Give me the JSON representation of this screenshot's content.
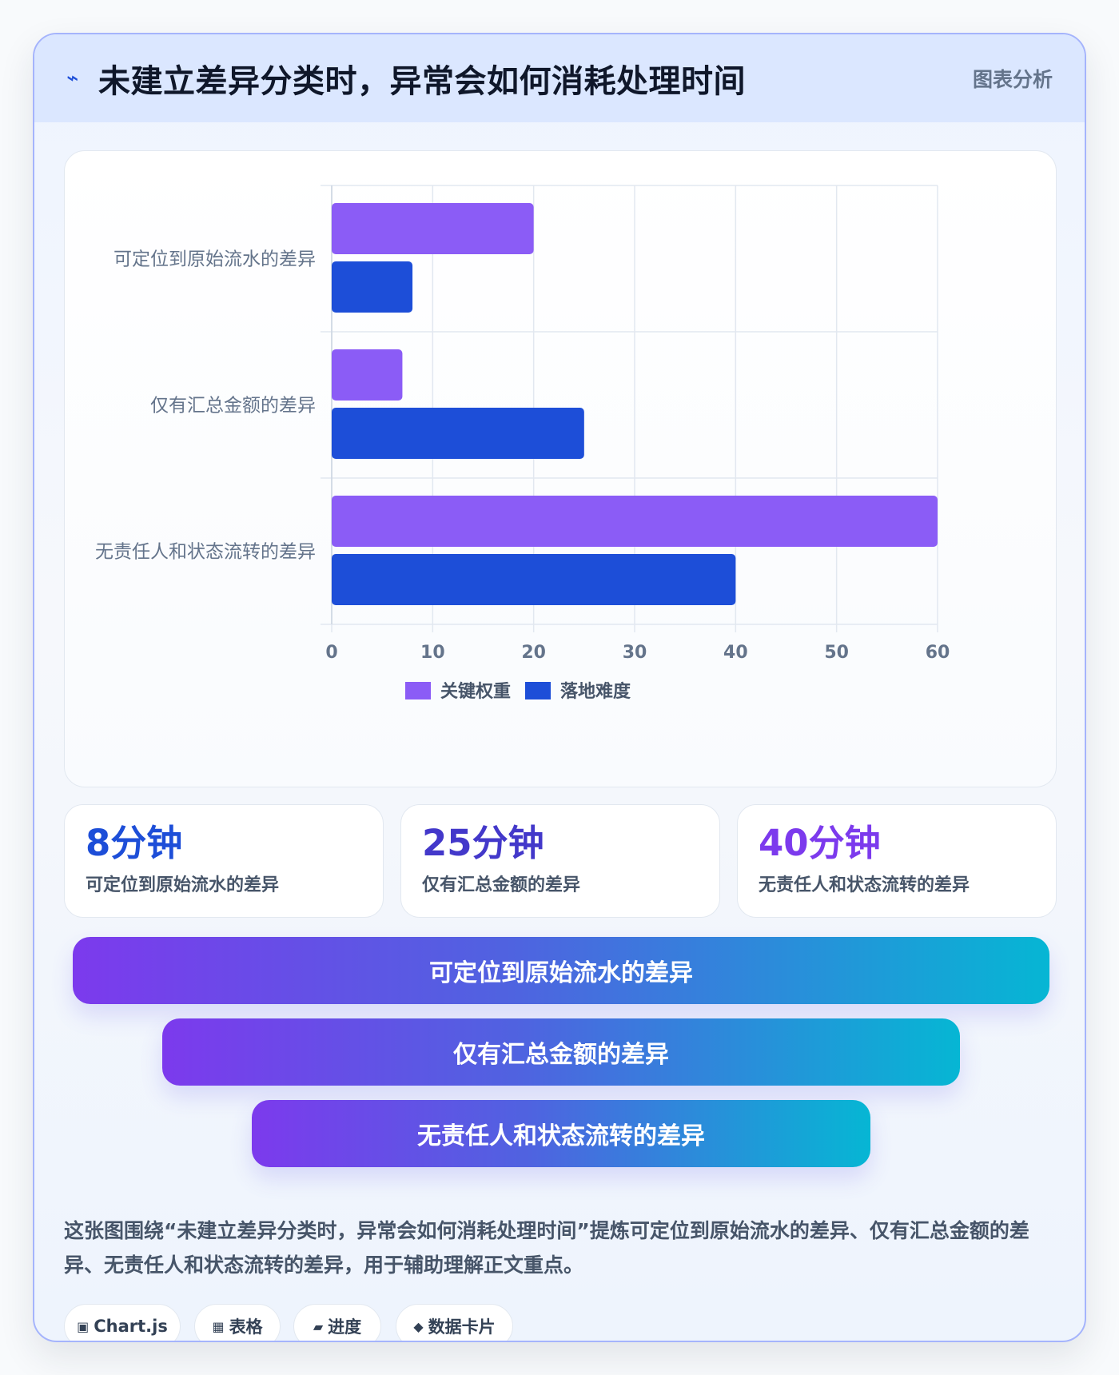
{
  "header": {
    "icon": "lightning-icon",
    "title": "未建立差异分类时，异常会如何消耗处理时间",
    "badge": "图表分析"
  },
  "chart_data": {
    "type": "bar",
    "orientation": "horizontal",
    "categories": [
      "可定位到原始流水的差异",
      "仅有汇总金额的差异",
      "无责任人和状态流转的差异"
    ],
    "series": [
      {
        "name": "关键权重",
        "values": [
          20,
          7,
          60
        ],
        "color": "#8b5cf6"
      },
      {
        "name": "落地难度",
        "values": [
          8,
          25,
          40
        ],
        "color": "#1d4ed8"
      }
    ],
    "xlim": [
      0,
      60
    ],
    "xticks": [
      "0",
      "10",
      "20",
      "30",
      "40",
      "50",
      "60"
    ],
    "grid": true,
    "legend": "bottom"
  },
  "stats": [
    {
      "value": "8分钟",
      "label": "可定位到原始流水的差异",
      "color": "#1d4ed8"
    },
    {
      "value": "25分钟",
      "label": "仅有汇总金额的差异",
      "color": "#4338ca"
    },
    {
      "value": "40分钟",
      "label": "无责任人和状态流转的差异",
      "color": "#7c3aed"
    }
  ],
  "funnel": [
    "可定位到原始流水的差异",
    "仅有汇总金额的差异",
    "无责任人和状态流转的差异"
  ],
  "summary": "这张图围绕“未建立差异分类时，异常会如何消耗处理时间”提炼可定位到原始流水的差异、仅有汇总金额的差异、无责任人和状态流转的差异，用于辅助理解正文重点。",
  "tags": [
    {
      "icon": "▣",
      "icon_name": "chart-icon",
      "label": "Chart.js"
    },
    {
      "icon": "▦",
      "icon_name": "table-icon",
      "label": "表格"
    },
    {
      "icon": "▰",
      "icon_name": "progress-icon",
      "label": "进度"
    },
    {
      "icon": "◆",
      "icon_name": "data-card-icon",
      "label": "数据卡片"
    }
  ]
}
